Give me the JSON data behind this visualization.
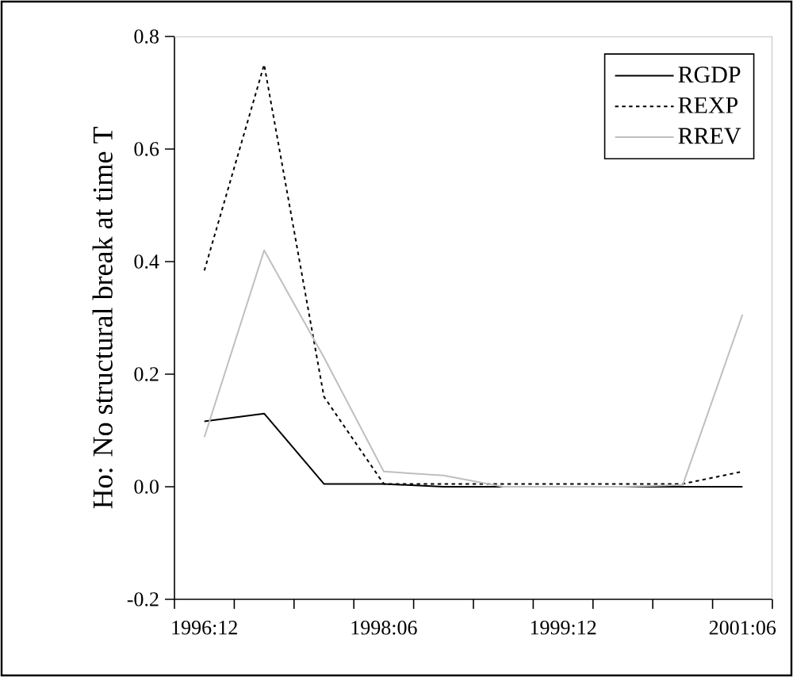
{
  "chart_data": {
    "type": "line",
    "ylabel": "Ho: No structural break at time T",
    "categories": [
      "1996:12",
      null,
      null,
      "1998:06",
      null,
      null,
      "1999:12",
      null,
      null,
      "2001:06"
    ],
    "series": [
      {
        "name": "RGDP",
        "color": "#000000",
        "line_style": "solid",
        "values": [
          0.116,
          0.13,
          0.005,
          0.005,
          0.0,
          0.0,
          0.0,
          0.0,
          0.0,
          0.0
        ]
      },
      {
        "name": "REXP",
        "color": "#000000",
        "line_style": "dotted",
        "values": [
          0.384,
          0.75,
          0.16,
          0.005,
          0.005,
          0.005,
          0.005,
          0.005,
          0.005,
          0.027
        ]
      },
      {
        "name": "RREV",
        "color": "#bfbfbf",
        "line_style": "solid",
        "values": [
          0.088,
          0.42,
          0.23,
          0.027,
          0.02,
          0.0,
          0.0,
          0.0,
          0.003,
          0.306
        ]
      }
    ],
    "ylim": [
      -0.2,
      0.8
    ],
    "yticks": [
      -0.2,
      {
        "value": 0,
        "label": "0.0"
      },
      0.2,
      0.4,
      0.6,
      0.8
    ],
    "legend": "top right",
    "grid": false,
    "marker": "none"
  }
}
